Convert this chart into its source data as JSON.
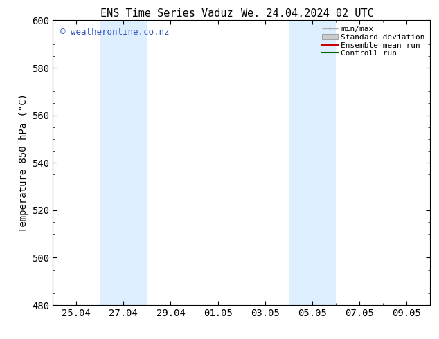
{
  "title_left": "ENS Time Series Vaduz",
  "title_right": "We. 24.04.2024 02 UTC",
  "ylabel": "Temperature 850 hPa (°C)",
  "ylim": [
    480,
    600
  ],
  "yticks": [
    480,
    500,
    520,
    540,
    560,
    580,
    600
  ],
  "xtick_labels": [
    "25.04",
    "27.04",
    "29.04",
    "01.05",
    "03.05",
    "05.05",
    "07.05",
    "09.05"
  ],
  "shaded_bands": [
    {
      "xstart": 2,
      "xend": 4
    },
    {
      "xstart": 10,
      "xend": 12
    }
  ],
  "shade_color": "#ddeeff",
  "watermark": "© weatheronline.co.nz",
  "watermark_color": "#3355bb",
  "legend_entries": [
    "min/max",
    "Standard deviation",
    "Ensemble mean run",
    "Controll run"
  ],
  "legend_colors_line": [
    "#aaaaaa",
    "#cccccc",
    "#cc0000",
    "#006600"
  ],
  "bg_color": "#ffffff",
  "plot_bg_color": "#ffffff",
  "font_size": 10,
  "title_font_size": 11,
  "watermark_font_size": 9
}
